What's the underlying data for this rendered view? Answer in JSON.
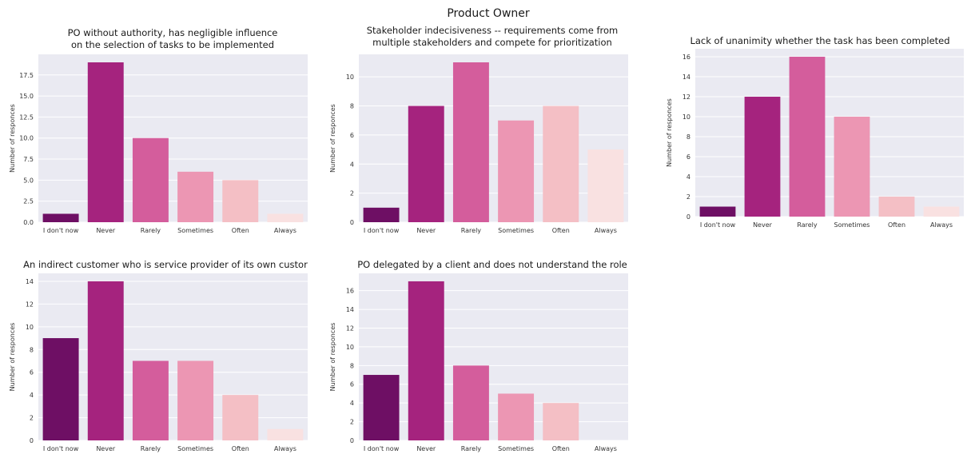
{
  "figure_title": "Product Owner",
  "colors": {
    "background": "#eaeaf2",
    "grid": "#ffffff",
    "bars": [
      "#6e0f64",
      "#a5237e",
      "#d45d9c",
      "#ec96b3",
      "#f4bfc5",
      "#f9e1e1"
    ]
  },
  "chart_data": [
    {
      "type": "bar",
      "title_lines": [
        "PO without authority, has negligible influence",
        "on the selection of tasks to be implemented"
      ],
      "ylabel": "Number of responces",
      "categories": [
        "I don't now",
        "Never",
        "Rarely",
        "Sometimes",
        "Often",
        "Always"
      ],
      "values": [
        1,
        19,
        10,
        6,
        5,
        1
      ],
      "ylim": [
        0,
        19.95
      ],
      "yticks": [
        0,
        2.5,
        5.0,
        7.5,
        10.0,
        12.5,
        15.0,
        17.5
      ],
      "ytick_labels": [
        "0.0",
        "2.5",
        "5.0",
        "7.5",
        "10.0",
        "12.5",
        "15.0",
        "17.5"
      ],
      "grid": true
    },
    {
      "type": "bar",
      "title_lines": [
        "Stakeholder indecisiveness -- requirements come from",
        "multiple stakeholders and compete for prioritization"
      ],
      "ylabel": "Number of responces",
      "categories": [
        "I don't now",
        "Never",
        "Rarely",
        "Sometimes",
        "Often",
        "Always"
      ],
      "values": [
        1,
        8,
        11,
        7,
        8,
        5
      ],
      "ylim": [
        0,
        11.55
      ],
      "yticks": [
        0,
        2,
        4,
        6,
        8,
        10
      ],
      "ytick_labels": [
        "0",
        "2",
        "4",
        "6",
        "8",
        "10"
      ],
      "grid": true
    },
    {
      "type": "bar",
      "title_lines": [
        "Lack of unanimity  whether the task has been completed"
      ],
      "ylabel": "Number of responces",
      "categories": [
        "I don't now",
        "Never",
        "Rarely",
        "Sometimes",
        "Often",
        "Always"
      ],
      "values": [
        1,
        12,
        16,
        10,
        2,
        1
      ],
      "ylim": [
        0,
        16.8
      ],
      "yticks": [
        0,
        2,
        4,
        6,
        8,
        10,
        12,
        14,
        16
      ],
      "ytick_labels": [
        "0",
        "2",
        "4",
        "6",
        "8",
        "10",
        "12",
        "14",
        "16"
      ],
      "grid": true
    },
    {
      "type": "bar",
      "title_lines": [
        "An indirect customer who is service provider of its own custor"
      ],
      "ylabel": "Number of responces",
      "categories": [
        "I don't now",
        "Never",
        "Rarely",
        "Sometimes",
        "Often",
        "Always"
      ],
      "values": [
        9,
        14,
        7,
        7,
        4,
        1
      ],
      "ylim": [
        0,
        14.7
      ],
      "yticks": [
        0,
        2,
        4,
        6,
        8,
        10,
        12,
        14
      ],
      "ytick_labels": [
        "0",
        "2",
        "4",
        "6",
        "8",
        "10",
        "12",
        "14"
      ],
      "grid": true
    },
    {
      "type": "bar",
      "title_lines": [
        "PO delegated by a client and does not understand the role"
      ],
      "ylabel": "Number of responces",
      "categories": [
        "I don't now",
        "Never",
        "Rarely",
        "Sometimes",
        "Often",
        "Always"
      ],
      "values": [
        7,
        17,
        8,
        5,
        4,
        0
      ],
      "ylim": [
        0,
        17.85
      ],
      "yticks": [
        0,
        2,
        4,
        6,
        8,
        10,
        12,
        14,
        16
      ],
      "ytick_labels": [
        "0",
        "2",
        "4",
        "6",
        "8",
        "10",
        "12",
        "14",
        "16"
      ],
      "grid": true
    }
  ]
}
